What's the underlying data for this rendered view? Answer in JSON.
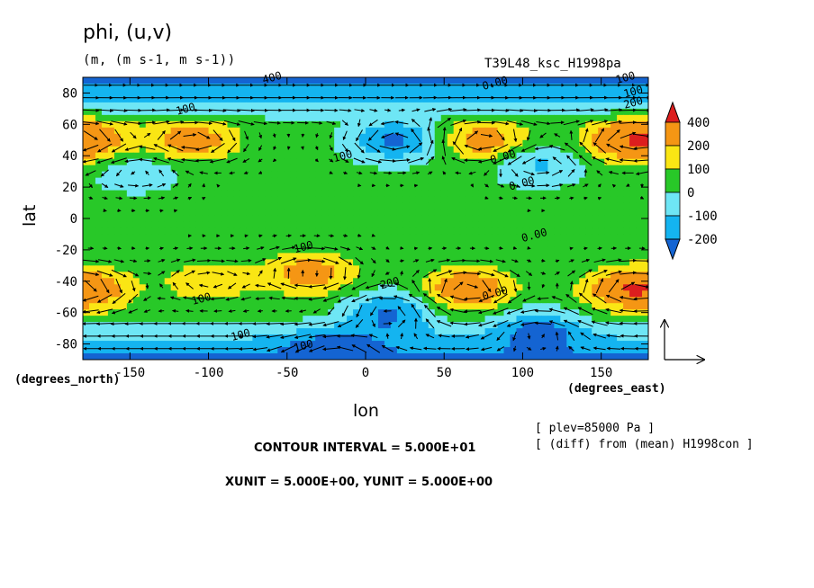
{
  "header": {
    "title": "phi, (u,v)",
    "units": "(m, (m s-1, m s-1))",
    "run": "T39L48_ksc_H1998pa"
  },
  "footer": {
    "plev": "[ plev=85000 Pa ]",
    "diff": "[ (diff) from (mean) H1998con ]",
    "contour_interval": "CONTOUR INTERVAL = 5.000E+01",
    "vector_units": "XUNIT = 5.000E+00, YUNIT = 5.000E+00"
  },
  "chart_data": {
    "type": "heatmap",
    "title": "phi, (u,v)",
    "xlabel": "lon",
    "ylabel": "lat",
    "x_unit_label": "(degrees_east)",
    "y_unit_label": "(degrees_north)",
    "xlim": [
      -180,
      180
    ],
    "ylim": [
      -90,
      90
    ],
    "x_ticks": [
      -150,
      -100,
      -50,
      0,
      50,
      100,
      150
    ],
    "y_ticks": [
      -80,
      -60,
      -40,
      -20,
      0,
      20,
      40,
      60,
      80
    ],
    "colorbar": {
      "levels": [
        -200,
        -100,
        0,
        100,
        200,
        400
      ],
      "labels": [
        "400",
        "200",
        "100",
        "0",
        "-100",
        "-200"
      ],
      "colors": [
        "#1464d2",
        "#14b4f0",
        "#6ee6f5",
        "#28c828",
        "#fae614",
        "#f59614",
        "#dc1e1e"
      ]
    },
    "contour_labels": [
      "400",
      "100",
      "100",
      "100",
      "100",
      "0.00",
      "0.00",
      "0.00",
      "0.00",
      "100",
      "200",
      "0.00",
      "100",
      "100",
      "100",
      "200"
    ],
    "colors": {
      "deep_blue": "#1464d2",
      "blue": "#14b4f0",
      "cyan": "#6ee6f5",
      "green": "#28c828",
      "yellow": "#fae614",
      "orange": "#f59614",
      "red": "#dc1e1e"
    },
    "features": [
      {
        "kind": "high",
        "lon": -110,
        "lat": 50,
        "value": 250
      },
      {
        "kind": "high",
        "lon": 75,
        "lat": 50,
        "value": 250
      },
      {
        "kind": "high",
        "lon": 165,
        "lat": 50,
        "value": 250
      },
      {
        "kind": "high",
        "lon": -175,
        "lat": 50,
        "value": 200
      },
      {
        "kind": "high",
        "lon": -35,
        "lat": -35,
        "value": 250
      },
      {
        "kind": "high",
        "lon": 65,
        "lat": -45,
        "value": 300
      },
      {
        "kind": "high",
        "lon": 165,
        "lat": -45,
        "value": 250
      },
      {
        "kind": "high",
        "lon": -175,
        "lat": -45,
        "value": 200
      },
      {
        "kind": "high",
        "lon": -100,
        "lat": -40,
        "value": 150
      },
      {
        "kind": "low",
        "lon": 20,
        "lat": 50,
        "value": -250
      },
      {
        "kind": "low",
        "lon": 110,
        "lat": 35,
        "value": -150
      },
      {
        "kind": "low",
        "lon": -145,
        "lat": 30,
        "value": -100
      },
      {
        "kind": "low",
        "lon": 15,
        "lat": -60,
        "value": -250
      },
      {
        "kind": "low",
        "lon": 110,
        "lat": -70,
        "value": -200
      },
      {
        "kind": "low",
        "lon": -20,
        "lat": -85,
        "value": -200
      }
    ]
  }
}
